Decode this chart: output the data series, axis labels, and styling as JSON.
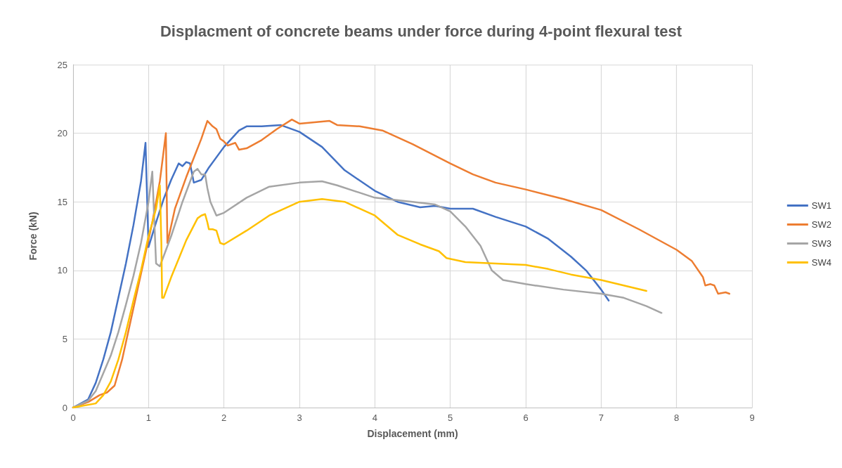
{
  "chart_data": {
    "type": "line",
    "title": "Displacment of concrete beams under force during 4-point flexural test",
    "xlabel": "Displacement (mm)",
    "ylabel": "Force (kN)",
    "xlim": [
      0,
      9
    ],
    "xticks": [
      0,
      1,
      2,
      3,
      4,
      5,
      6,
      7,
      8,
      9
    ],
    "ylim": [
      0,
      25
    ],
    "yticks": [
      0,
      5,
      10,
      15,
      20,
      25
    ],
    "grid": true,
    "legend": "right",
    "marker": "none",
    "line_style": "solid",
    "series": [
      {
        "name": "SW1",
        "color": "#4472c4",
        "x": [
          0,
          0.2,
          0.3,
          0.4,
          0.5,
          0.6,
          0.7,
          0.8,
          0.9,
          0.96,
          1.0,
          1.1,
          1.2,
          1.3,
          1.4,
          1.45,
          1.5,
          1.55,
          1.6,
          1.7,
          1.8,
          2.0,
          2.2,
          2.3,
          2.5,
          2.75,
          3.0,
          3.3,
          3.6,
          4.0,
          4.3,
          4.6,
          4.8,
          5.0,
          5.3,
          5.6,
          6.0,
          6.3,
          6.6,
          6.8,
          7.0,
          7.1
        ],
        "values": [
          0,
          0.6,
          1.8,
          3.5,
          5.5,
          8,
          10.5,
          13.3,
          16.5,
          19.3,
          11.7,
          13.5,
          15.2,
          16.6,
          17.8,
          17.6,
          17.9,
          17.8,
          16.4,
          16.6,
          17.5,
          19.0,
          20.2,
          20.5,
          20.5,
          20.6,
          20.1,
          19.0,
          17.3,
          15.8,
          15.0,
          14.6,
          14.7,
          14.5,
          14.5,
          13.9,
          13.2,
          12.3,
          11.0,
          10.0,
          8.6,
          7.8
        ]
      },
      {
        "name": "SW2",
        "color": "#ed7d31",
        "x": [
          0,
          0.2,
          0.35,
          0.45,
          0.55,
          0.65,
          0.75,
          0.85,
          0.95,
          1.05,
          1.15,
          1.23,
          1.25,
          1.35,
          1.5,
          1.6,
          1.7,
          1.78,
          1.85,
          1.9,
          1.95,
          2.0,
          2.05,
          2.15,
          2.2,
          2.3,
          2.5,
          2.7,
          2.9,
          3.0,
          3.2,
          3.4,
          3.5,
          3.8,
          4.1,
          4.5,
          5.0,
          5.3,
          5.6,
          6.0,
          6.5,
          7.0,
          7.5,
          8.0,
          8.2,
          8.35,
          8.38,
          8.45,
          8.5,
          8.55,
          8.65,
          8.7
        ],
        "values": [
          0,
          0.4,
          0.9,
          1.1,
          1.6,
          3.5,
          6,
          8.5,
          11,
          13.5,
          16.5,
          20.0,
          12.0,
          14.5,
          16.8,
          18.2,
          19.6,
          20.9,
          20.5,
          20.3,
          19.6,
          19.4,
          19.1,
          19.3,
          18.8,
          18.9,
          19.5,
          20.3,
          21.0,
          20.7,
          20.8,
          20.9,
          20.6,
          20.5,
          20.2,
          19.2,
          17.8,
          17.0,
          16.4,
          15.9,
          15.2,
          14.4,
          13.0,
          11.5,
          10.7,
          9.5,
          8.9,
          9.0,
          8.9,
          8.3,
          8.4,
          8.3
        ]
      },
      {
        "name": "SW3",
        "color": "#a5a5a5",
        "x": [
          0,
          0.2,
          0.3,
          0.4,
          0.5,
          0.6,
          0.7,
          0.8,
          0.9,
          1.0,
          1.05,
          1.1,
          1.15,
          1.3,
          1.45,
          1.6,
          1.65,
          1.7,
          1.75,
          1.78,
          1.82,
          1.9,
          2.0,
          2.3,
          2.6,
          3.0,
          3.3,
          3.5,
          4.0,
          4.5,
          4.8,
          5.0,
          5.2,
          5.4,
          5.55,
          5.7,
          6.0,
          6.5,
          7.0,
          7.3,
          7.6,
          7.8
        ],
        "values": [
          0,
          0.5,
          1.2,
          2.5,
          3.8,
          5.5,
          7.5,
          9.6,
          12,
          15,
          17.2,
          10.5,
          10.3,
          12.5,
          15,
          17.2,
          17.4,
          17.0,
          17.0,
          16.0,
          15.0,
          14.0,
          14.2,
          15.3,
          16.1,
          16.4,
          16.5,
          16.2,
          15.3,
          15.0,
          14.8,
          14.3,
          13.2,
          11.8,
          10.0,
          9.3,
          9.0,
          8.6,
          8.3,
          8.0,
          7.4,
          6.9
        ]
      },
      {
        "name": "SW4",
        "color": "#ffc000",
        "x": [
          0,
          0.3,
          0.4,
          0.5,
          0.6,
          0.7,
          0.8,
          0.9,
          1.0,
          1.1,
          1.15,
          1.17,
          1.18,
          1.2,
          1.3,
          1.5,
          1.65,
          1.7,
          1.75,
          1.78,
          1.8,
          1.85,
          1.9,
          1.95,
          2.0,
          2.3,
          2.6,
          3.0,
          3.3,
          3.6,
          4.0,
          4.3,
          4.6,
          4.85,
          4.95,
          5.2,
          5.6,
          6.0,
          6.3,
          6.6,
          7.0,
          7.3,
          7.6
        ],
        "values": [
          0,
          0.3,
          0.9,
          1.9,
          3.5,
          5.5,
          7.8,
          10,
          12.5,
          14.5,
          16.2,
          12,
          8.0,
          8.0,
          9.5,
          12.2,
          13.8,
          14.0,
          14.1,
          13.5,
          13.0,
          13.0,
          12.9,
          12.0,
          11.9,
          12.9,
          14.0,
          15.0,
          15.2,
          15.0,
          14.0,
          12.6,
          11.9,
          11.4,
          10.9,
          10.6,
          10.5,
          10.4,
          10.1,
          9.7,
          9.3,
          8.9,
          8.5
        ]
      }
    ]
  }
}
